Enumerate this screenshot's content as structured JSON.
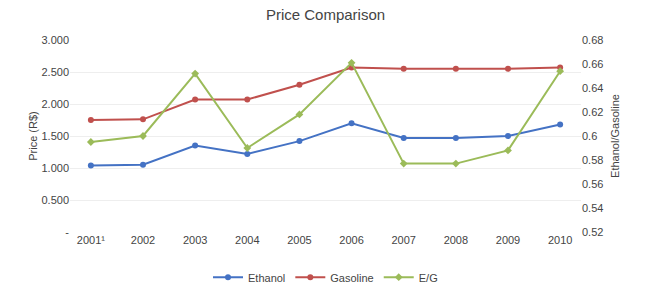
{
  "chart_data": {
    "type": "line",
    "title": "Price Comparison",
    "categories": [
      "2001¹",
      "2002",
      "2003",
      "2004",
      "2005",
      "2006",
      "2007",
      "2008",
      "2009",
      "2010"
    ],
    "series": [
      {
        "name": "Ethanol",
        "color": "#4472C4",
        "marker": "circle",
        "line_style": "solid",
        "values": [
          1.04,
          1.05,
          1.35,
          1.22,
          1.42,
          1.7,
          1.47,
          1.47,
          1.5,
          1.68
        ]
      },
      {
        "name": "Gasoline",
        "color": "#C0504D",
        "marker": "circle",
        "line_style": "solid",
        "values": [
          1.75,
          1.76,
          2.07,
          2.07,
          2.3,
          2.57,
          2.55,
          2.55,
          2.55,
          2.57
        ]
      },
      {
        "name": "E/G",
        "color": "#9BBB59",
        "marker": "diamond",
        "line_style": "solid",
        "axis": "y2",
        "values": [
          0.595,
          0.6,
          0.652,
          0.59,
          0.618,
          0.661,
          0.577,
          0.577,
          0.588,
          0.654
        ]
      }
    ],
    "ylabel": "Price (R$)",
    "y2label": "Ethanol/Gasoline",
    "ylim": [
      0,
      3.0
    ],
    "yticks": [
      {
        "value": 0.0,
        "label": "-"
      },
      {
        "value": 0.5,
        "label": "0.500"
      },
      {
        "value": 1.0,
        "label": "1.000"
      },
      {
        "value": 1.5,
        "label": "1.500"
      },
      {
        "value": 2.0,
        "label": "2.000"
      },
      {
        "value": 2.5,
        "label": "2.500"
      },
      {
        "value": 3.0,
        "label": "3.000"
      }
    ],
    "y2lim": [
      0.52,
      0.68
    ],
    "y2ticks": [
      0.52,
      0.54,
      0.56,
      0.58,
      0.6,
      0.62,
      0.64,
      0.66,
      0.68
    ],
    "grid": true,
    "legend": "bottom"
  }
}
